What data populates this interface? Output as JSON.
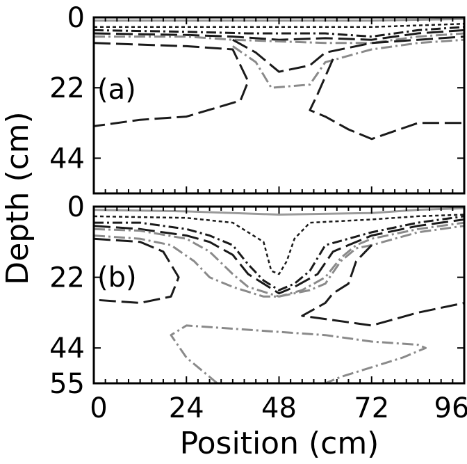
{
  "chart_data": [
    {
      "type": "line",
      "panel_label": "(a)",
      "xlabel": "Position (cm)",
      "ylabel": "Depth (cm)",
      "xlim": [
        0,
        96
      ],
      "ylim": [
        0,
        55
      ],
      "y_inverted": true,
      "xticks": [
        "0",
        "24",
        "48",
        "72",
        "96"
      ],
      "yticks": [
        "0",
        "22",
        "44"
      ],
      "ytick_values": [
        0,
        22,
        44
      ],
      "series": [
        {
          "style": "solid-gray",
          "points": [
            [
              0,
              1
            ],
            [
              24,
              1
            ],
            [
              48,
              1
            ],
            [
              60,
              1
            ],
            [
              72,
              1
            ],
            [
              96,
              0.5
            ]
          ]
        },
        {
          "style": "short-dash",
          "points": [
            [
              0,
              3
            ],
            [
              24,
              3
            ],
            [
              48,
              3
            ],
            [
              60,
              3
            ],
            [
              72,
              3
            ],
            [
              84,
              2.5
            ],
            [
              96,
              2
            ]
          ]
        },
        {
          "style": "dash-dot",
          "points": [
            [
              0,
              4
            ],
            [
              24,
              4.5
            ],
            [
              40,
              5
            ],
            [
              50,
              5
            ],
            [
              60,
              5
            ],
            [
              72,
              6
            ],
            [
              84,
              4
            ],
            [
              96,
              3
            ]
          ]
        },
        {
          "style": "long-dash",
          "points": [
            [
              0,
              5
            ],
            [
              24,
              5.5
            ],
            [
              36,
              6
            ],
            [
              48,
              7
            ],
            [
              60,
              6.5
            ],
            [
              72,
              7
            ],
            [
              84,
              5
            ],
            [
              96,
              4
            ]
          ]
        },
        {
          "style": "dash-dot-gray",
          "points": [
            [
              0,
              6
            ],
            [
              24,
              6
            ],
            [
              36,
              7
            ],
            [
              48,
              7.5
            ],
            [
              60,
              8
            ],
            [
              72,
              8
            ],
            [
              84,
              6
            ],
            [
              96,
              5
            ]
          ]
        },
        {
          "style": "long-dash",
          "points": [
            [
              36,
              7
            ],
            [
              42,
              11
            ],
            [
              48,
              17
            ],
            [
              56,
              15
            ],
            [
              60,
              11
            ],
            [
              72,
              8
            ],
            [
              84,
              7
            ],
            [
              96,
              6
            ]
          ]
        },
        {
          "style": "dash-dot-gray",
          "points": [
            [
              36,
              9
            ],
            [
              42,
              14
            ],
            [
              46,
              22
            ],
            [
              56,
              21
            ],
            [
              60,
              14
            ],
            [
              72,
              10
            ],
            [
              84,
              8
            ],
            [
              96,
              7
            ]
          ]
        },
        {
          "style": "long-dash",
          "points": [
            [
              0,
              8
            ],
            [
              24,
              9
            ],
            [
              36,
              10
            ],
            [
              40,
              20
            ],
            [
              38,
              26
            ],
            [
              24,
              31
            ],
            [
              12,
              32
            ],
            [
              0,
              34
            ]
          ]
        },
        {
          "style": "long-dash",
          "points": [
            [
              62,
              13
            ],
            [
              58,
              24
            ],
            [
              56,
              29
            ],
            [
              60,
              31
            ],
            [
              66,
              35
            ],
            [
              72,
              38
            ],
            [
              84,
              33
            ],
            [
              96,
              33
            ]
          ]
        }
      ]
    },
    {
      "type": "line",
      "panel_label": "(b)",
      "xlabel": "Position (cm)",
      "ylabel": "Depth (cm)",
      "xlim": [
        0,
        96
      ],
      "ylim": [
        0,
        55
      ],
      "y_inverted": true,
      "xticks": [
        "0",
        "24",
        "48",
        "72",
        "96"
      ],
      "yticks": [
        "0",
        "22",
        "44",
        "55"
      ],
      "ytick_values": [
        0,
        22,
        44,
        55
      ],
      "series": [
        {
          "style": "solid-gray",
          "points": [
            [
              0,
              1
            ],
            [
              24,
              1.5
            ],
            [
              48,
              2.5
            ],
            [
              72,
              2
            ],
            [
              84,
              1
            ],
            [
              96,
              0.5
            ]
          ]
        },
        {
          "style": "short-dash",
          "points": [
            [
              0,
              3
            ],
            [
              24,
              3.5
            ],
            [
              36,
              5
            ],
            [
              44,
              11
            ],
            [
              46,
              20
            ],
            [
              48,
              21
            ],
            [
              50,
              17
            ],
            [
              52,
              10
            ],
            [
              56,
              5
            ],
            [
              72,
              4
            ],
            [
              84,
              3
            ],
            [
              96,
              2.5
            ]
          ]
        },
        {
          "style": "dash-dot",
          "points": [
            [
              0,
              5
            ],
            [
              12,
              5
            ],
            [
              24,
              7
            ],
            [
              30,
              9
            ],
            [
              36,
              12
            ],
            [
              40,
              18
            ],
            [
              44,
              23
            ],
            [
              48,
              26
            ],
            [
              52,
              24
            ],
            [
              56,
              20
            ],
            [
              60,
              12
            ],
            [
              66,
              10
            ],
            [
              72,
              8
            ],
            [
              84,
              5
            ],
            [
              96,
              3
            ]
          ]
        },
        {
          "style": "long-dash",
          "points": [
            [
              0,
              6
            ],
            [
              12,
              7
            ],
            [
              24,
              9
            ],
            [
              30,
              11
            ],
            [
              36,
              15
            ],
            [
              40,
              21
            ],
            [
              44,
              24
            ],
            [
              48,
              27
            ],
            [
              52,
              25
            ],
            [
              58,
              21
            ],
            [
              62,
              14
            ],
            [
              66,
              12
            ],
            [
              72,
              9
            ],
            [
              84,
              6
            ],
            [
              96,
              4
            ]
          ]
        },
        {
          "style": "dash-dot-gray",
          "points": [
            [
              0,
              7
            ],
            [
              12,
              7.5
            ],
            [
              24,
              10
            ],
            [
              30,
              14
            ],
            [
              36,
              21
            ],
            [
              40,
              25
            ],
            [
              48,
              28
            ],
            [
              54,
              26
            ],
            [
              60,
              22
            ],
            [
              64,
              16
            ],
            [
              68,
              12
            ],
            [
              72,
              10
            ],
            [
              84,
              7
            ],
            [
              96,
              5
            ]
          ]
        },
        {
          "style": "dash-dot-gray",
          "points": [
            [
              0,
              9
            ],
            [
              12,
              10
            ],
            [
              20,
              12
            ],
            [
              26,
              17
            ],
            [
              30,
              22
            ],
            [
              36,
              25
            ],
            [
              44,
              28
            ],
            [
              48,
              28
            ],
            [
              56,
              26
            ],
            [
              60,
              24
            ],
            [
              64,
              17
            ],
            [
              68,
              13
            ],
            [
              72,
              12
            ],
            [
              84,
              8
            ],
            [
              96,
              6
            ]
          ]
        },
        {
          "style": "long-dash",
          "points": [
            [
              0,
              10
            ],
            [
              12,
              11
            ],
            [
              18,
              14
            ],
            [
              22,
              22
            ],
            [
              20,
              28
            ],
            [
              12,
              30
            ],
            [
              0,
              29
            ]
          ]
        },
        {
          "style": "long-dash",
          "points": [
            [
              72,
              12
            ],
            [
              68,
              17
            ],
            [
              66,
              24
            ],
            [
              62,
              27
            ],
            [
              60,
              30
            ],
            [
              54,
              34
            ],
            [
              60,
              35
            ],
            [
              72,
              37
            ],
            [
              84,
              33
            ],
            [
              96,
              30
            ]
          ]
        },
        {
          "style": "dash-dot-gray",
          "points": [
            [
              32,
              55
            ],
            [
              24,
              47
            ],
            [
              20,
              40
            ],
            [
              24,
              37
            ],
            [
              36,
              38
            ],
            [
              48,
              39
            ],
            [
              60,
              40
            ],
            [
              72,
              42
            ],
            [
              84,
              43
            ],
            [
              86,
              44
            ],
            [
              80,
              47
            ],
            [
              72,
              50
            ],
            [
              64,
              53
            ],
            [
              60,
              55
            ]
          ]
        }
      ]
    }
  ]
}
